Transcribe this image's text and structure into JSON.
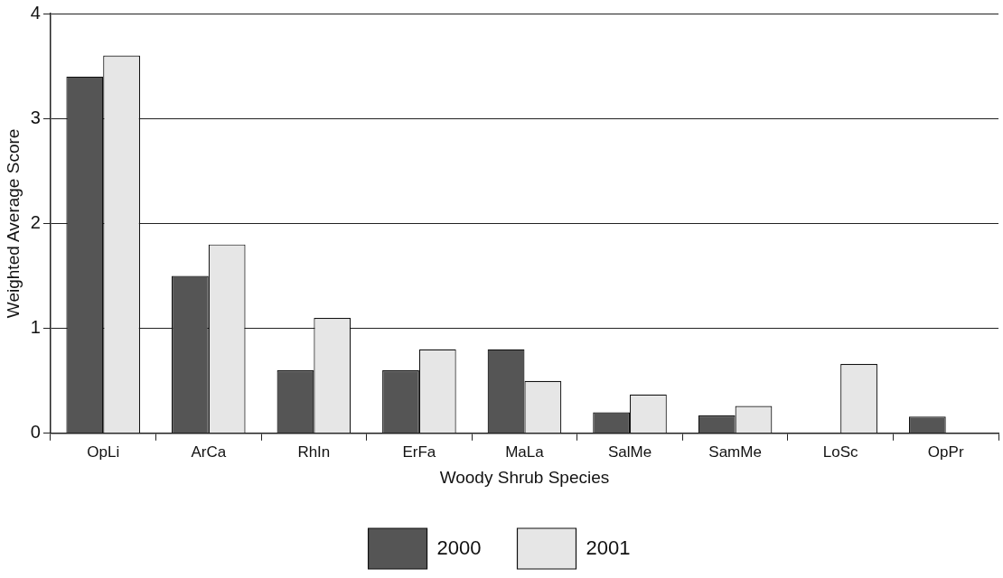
{
  "chart_data": {
    "type": "bar",
    "xlabel": "Woody Shrub Species",
    "ylabel": "Weighted Average Score",
    "categories": [
      "OpLi",
      "ArCa",
      "RhIn",
      "ErFa",
      "MaLa",
      "SalMe",
      "SamMe",
      "LoSc",
      "OpPr"
    ],
    "series": [
      {
        "name": "2000",
        "color": "#555555",
        "values": [
          3.4,
          1.5,
          0.6,
          0.6,
          0.8,
          0.2,
          0.17,
          null,
          0.16
        ]
      },
      {
        "name": "2001",
        "color": "#e6e6e6",
        "values": [
          3.6,
          1.8,
          1.1,
          0.8,
          0.5,
          0.37,
          0.26,
          0.66,
          null
        ]
      }
    ],
    "ylim": [
      0,
      4
    ],
    "yticks": [
      0,
      1,
      2,
      3,
      4
    ],
    "grid": "y",
    "legend": "bottom"
  }
}
